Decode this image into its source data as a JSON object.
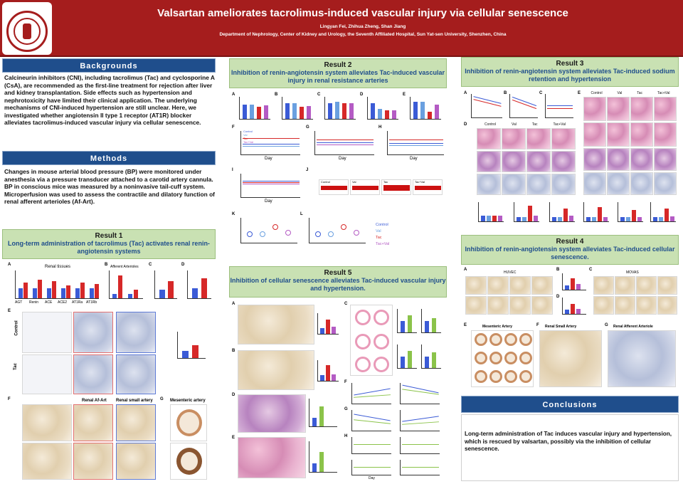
{
  "header": {
    "title": "Valsartan ameliorates tacrolimus-induced vascular injury via cellular senescence",
    "authors": "Lingyan Fei, Zhihua Zheng, Shan Jiang",
    "affiliation": "Department of Nephrology, Center of Kidney and Urology, the Seventh Affiliated Hospital, Sun Yat-sen University, Shenzhen, China"
  },
  "backgrounds": {
    "heading": "Backgrounds",
    "text": "Calcineurin inhibitors (CNI), including tacrolimus (Tac) and cyclosporine A (CsA), are recommended as the first-line treatment for rejection after liver and kidney transplantation. Side effects such as hypertension and nephrotoxicity have limited their clinical application. The underlying mechanisms of CNI-induced hypertension are still unclear. Here, we investigated whether angiotensin II type 1 receptor (AT1R) blocker alleviates tacrolimus-induced vascular injury via cellular senescence."
  },
  "methods": {
    "heading": "Methods",
    "text": "Changes in mouse arterial blood pressure (BP) were monitored under anesthesia via a pressure transducer attached to a carotid artery cannula. BP in conscious mice was measured by a noninvasive tail-cuff system. Microperfusion was used to assess the contractile and dilatory function of renal afferent arterioles (Af-Art)."
  },
  "result1": {
    "number": "Result 1",
    "subtitle": "Long-term administration of tacrolimus (Tac) activates renal renin-angiotensin systems",
    "labels": {
      "a": "A",
      "b": "B",
      "c": "C",
      "d": "D",
      "e": "E",
      "f": "F",
      "g": "G",
      "renal_tissues": "Renal tissues",
      "afferent_arterioles": "Afferent Arterioles",
      "control": "Control",
      "tac": "Tac",
      "renal_af_art": "Renal Af-Art",
      "renal_small_artery": "Renal small artery",
      "mesenteric_artery": "Mesenteric artery"
    },
    "genes": [
      "AGT",
      "Renin",
      "ACE",
      "ACE2",
      "AT1Ra",
      "AT1Rb"
    ]
  },
  "result2": {
    "number": "Result 2",
    "subtitle": "Inhibition of renin-angiotensin system alleviates Tac-induced vascular injury in renal resistance arteries",
    "labels": {
      "a": "A",
      "b": "B",
      "c": "C",
      "d": "D",
      "e": "E",
      "f": "F",
      "g": "G",
      "h": "H",
      "i": "I",
      "j": "J",
      "k": "K",
      "l": "L",
      "day": "Day"
    },
    "legend": [
      "Control",
      "Val",
      "Tac",
      "Tac+Val"
    ],
    "trace_labels": [
      "Control",
      "Val",
      "Tac",
      "Tac+Val"
    ]
  },
  "result3": {
    "number": "Result 3",
    "subtitle": "Inhibition of renin-angiotensin system alleviates Tac-induced sodium retention and hypertension",
    "labels": {
      "a": "A",
      "b": "B",
      "c": "C",
      "d": "D",
      "e": "E"
    },
    "groups": [
      "Control",
      "Val",
      "Tac",
      "Tac+Val"
    ]
  },
  "result4": {
    "number": "Result 4",
    "subtitle": "Inhibition of renin-angiotensin system alleviates Tac-induced cellular senescence.",
    "labels": {
      "a": "A",
      "b": "B",
      "c": "C",
      "d": "D",
      "e": "E",
      "f": "F",
      "g": "G",
      "huvec": "HUVEC",
      "movas": "MOVAS",
      "mesenteric_artery": "Mesenteric Artery",
      "renal_small_artery": "Renal Small Artery",
      "renal_afferent_arteriole": "Renal Afferent Arteriole"
    },
    "groups": [
      "Control",
      "Val",
      "Tac",
      "Tac+Val"
    ]
  },
  "result5": {
    "number": "Result 5",
    "subtitle": "Inhibition of cellular senescence alleviates Tac-induced vascular injury and hypertension.",
    "labels": {
      "a": "A",
      "b": "B",
      "c": "C",
      "d": "D",
      "e": "E",
      "f": "F",
      "g": "G",
      "h": "H",
      "day": "Day"
    }
  },
  "conclusions": {
    "heading": "Conclusions",
    "text": "Long-term administration of Tac induces vascular injury and hypertension, which is rescued by valsartan, possibly via the inhibition of cellular senescence."
  },
  "colors": {
    "header_bg": "#a51d1d",
    "section_blue": "#1f4e8c",
    "result_green": "#c9e1b3",
    "control_blue": "#3b5bd6",
    "tac_red": "#d62828"
  }
}
